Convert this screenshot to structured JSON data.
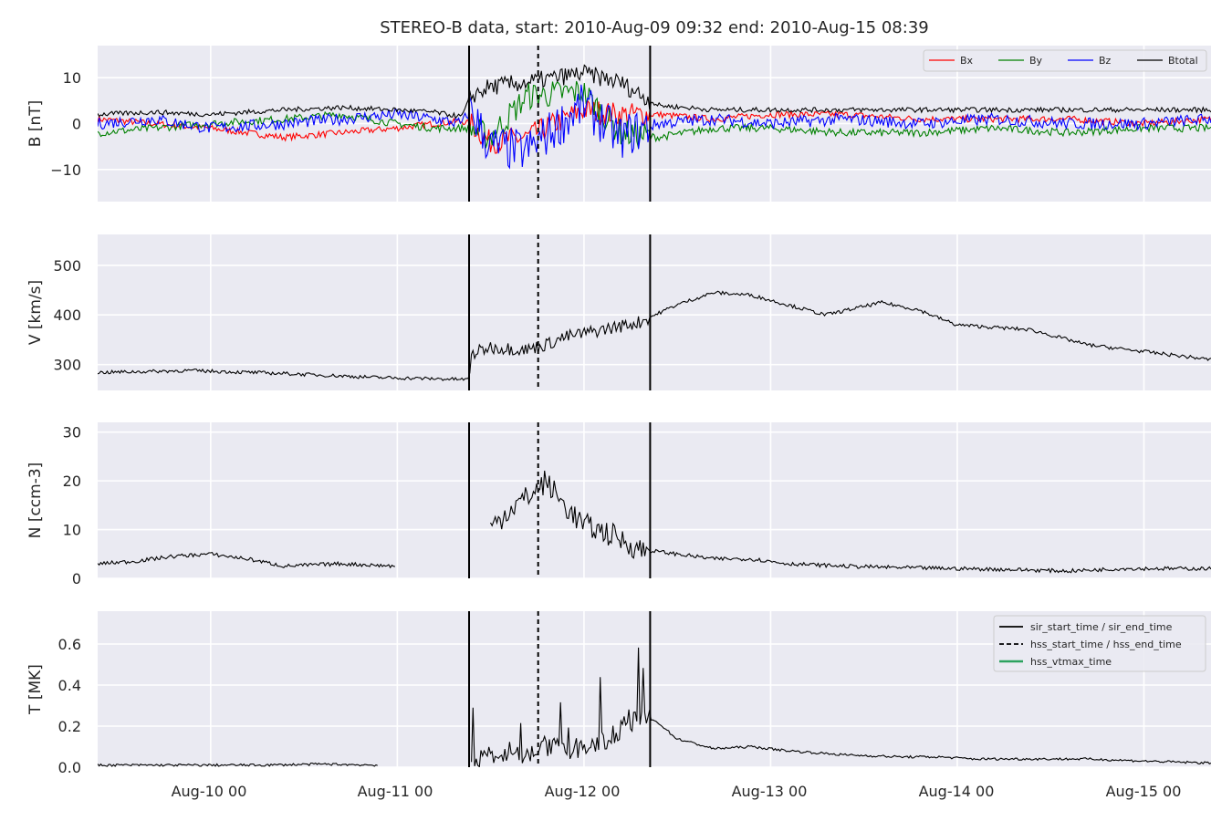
{
  "figure": {
    "title": "STEREO-B data, start: 2010-Aug-09 09:32  end: 2010-Aug-15 08:39",
    "background": "#eaeaf2",
    "grid_color": "#ffffff",
    "x_tick_labels": [
      "Aug-10 00",
      "Aug-11 00",
      "Aug-12 00",
      "Aug-13 00",
      "Aug-14 00",
      "Aug-15 00"
    ]
  },
  "chart_data": [
    {
      "type": "line",
      "panel": "B",
      "ylabel": "B [nT]",
      "xlim_days": [
        0,
        5.965
      ],
      "ylim": [
        -17,
        17
      ],
      "yticks": [
        -10,
        0,
        10
      ],
      "ytick_labels": [
        "−10",
        "0",
        "10"
      ],
      "grid": true,
      "legend": "top-right",
      "series": [
        {
          "name": "Bx",
          "color": "#ff0000",
          "x_day": [
            0,
            0.3,
            0.6,
            1.0,
            1.3,
            1.6,
            1.8,
            1.95,
            2.0,
            2.1,
            2.3,
            2.6,
            2.8,
            3.0,
            3.3,
            3.6,
            4.0,
            4.4,
            4.8,
            5.2,
            5.6,
            5.965
          ],
          "values": [
            1,
            0,
            -1,
            -3,
            -2,
            -1,
            0,
            0.5,
            0,
            -4,
            -3,
            3,
            2,
            2,
            1,
            2,
            2,
            1,
            1,
            1,
            0,
            1
          ]
        },
        {
          "name": "By",
          "color": "#008000",
          "x_day": [
            0,
            0.3,
            0.6,
            1.0,
            1.3,
            1.6,
            1.8,
            1.95,
            2.0,
            2.1,
            2.3,
            2.6,
            2.8,
            3.0,
            3.3,
            3.6,
            4.0,
            4.4,
            4.8,
            5.2,
            5.6,
            5.965
          ],
          "values": [
            -2,
            -1,
            0,
            1,
            2,
            0,
            -1,
            -1,
            -1,
            -3,
            6,
            7,
            -2,
            -3,
            -1,
            -1,
            -2,
            -2,
            -1,
            -2,
            -1,
            -1
          ]
        },
        {
          "name": "Bz",
          "color": "#0000ff",
          "x_day": [
            0,
            0.3,
            0.6,
            1.0,
            1.3,
            1.6,
            1.8,
            1.95,
            2.0,
            2.1,
            2.3,
            2.6,
            2.8,
            3.0,
            3.3,
            3.6,
            4.0,
            4.4,
            4.8,
            5.2,
            5.6,
            5.965
          ],
          "values": [
            0,
            1,
            -1,
            0,
            1,
            2,
            1,
            0,
            3,
            -5,
            -6,
            4,
            -3,
            0,
            1,
            0,
            1,
            0,
            1,
            0,
            0,
            1
          ]
        },
        {
          "name": "Btotal",
          "color": "#000000",
          "x_day": [
            0,
            0.3,
            0.6,
            1.0,
            1.3,
            1.6,
            1.8,
            1.95,
            2.0,
            2.1,
            2.3,
            2.6,
            2.8,
            3.0,
            3.3,
            3.6,
            4.0,
            4.4,
            4.8,
            5.2,
            5.6,
            5.965
          ],
          "values": [
            2,
            2.5,
            2,
            3,
            3.5,
            3,
            2.5,
            1.5,
            6,
            8,
            9,
            11,
            9,
            4,
            3,
            3,
            3,
            3,
            3,
            3,
            3,
            3
          ]
        }
      ]
    },
    {
      "type": "line",
      "panel": "V",
      "ylabel": "V [km/s]",
      "xlim_days": [
        0,
        5.965
      ],
      "ylim": [
        248,
        562
      ],
      "yticks": [
        300,
        400,
        500
      ],
      "ytick_labels": [
        "300",
        "400",
        "500"
      ],
      "grid": true,
      "series": [
        {
          "color": "#000000",
          "x_day": [
            0,
            0.5,
            1.0,
            1.5,
            1.99,
            2.0,
            2.1,
            2.3,
            2.4,
            2.5,
            2.7,
            2.9,
            3.1,
            3.3,
            3.5,
            3.7,
            3.9,
            4.2,
            4.4,
            4.6,
            5.0,
            5.3,
            5.965
          ],
          "values": [
            284,
            288,
            282,
            274,
            270,
            320,
            335,
            330,
            340,
            355,
            370,
            385,
            420,
            445,
            440,
            420,
            400,
            425,
            410,
            380,
            370,
            340,
            310
          ]
        }
      ]
    },
    {
      "type": "line",
      "panel": "N",
      "ylabel": "N [ccm-3]",
      "xlim_days": [
        0,
        5.965
      ],
      "ylim": [
        0,
        32
      ],
      "yticks": [
        0,
        10,
        20,
        30
      ],
      "ytick_labels": [
        "0",
        "10",
        "20",
        "30"
      ],
      "grid": true,
      "series": [
        {
          "color": "#000000",
          "x_day": [
            0,
            0.2,
            0.4,
            0.6,
            0.8,
            1.0,
            1.3,
            1.6,
            1.65,
            2.0,
            2.1,
            2.2,
            2.35,
            2.4,
            2.5,
            2.6,
            2.75,
            2.9,
            3.1,
            3.3,
            3.5,
            3.7,
            4.0,
            4.3,
            4.6,
            4.9,
            5.2,
            5.5,
            5.965
          ],
          "values": [
            3,
            3.5,
            4.5,
            5,
            4,
            2.5,
            3,
            2.5,
            null,
            null,
            10,
            14,
            18,
            20,
            15,
            11,
            9,
            6,
            5,
            4,
            4,
            3,
            2.5,
            2.2,
            2,
            1.8,
            1.5,
            2,
            2
          ]
        }
      ]
    },
    {
      "type": "line",
      "panel": "T",
      "ylabel": "T [MK]",
      "xlim_days": [
        0,
        5.965
      ],
      "ylim": [
        0,
        0.76
      ],
      "yticks": [
        0.0,
        0.2,
        0.4,
        0.6
      ],
      "ytick_labels": [
        "0.0",
        "0.2",
        "0.4",
        "0.6"
      ],
      "grid": true,
      "legend": "top-right",
      "series": [
        {
          "color": "#000000",
          "x_day": [
            0,
            0.3,
            0.6,
            0.9,
            1.2,
            1.5,
            1.65,
            2.0,
            2.1,
            2.2,
            2.3,
            2.35,
            2.4,
            2.5,
            2.7,
            2.9,
            3.0,
            3.1,
            3.3,
            3.5,
            3.7,
            4.0,
            4.3,
            4.5,
            4.7,
            5.0,
            5.3,
            5.6,
            5.965
          ],
          "values": [
            0.01,
            0.01,
            0.01,
            0.01,
            0.015,
            0.01,
            null,
            0.02,
            0.06,
            0.08,
            0.06,
            0.1,
            0.1,
            0.08,
            0.12,
            0.25,
            0.22,
            0.14,
            0.09,
            0.1,
            0.08,
            0.06,
            0.05,
            0.05,
            0.04,
            0.04,
            0.04,
            0.03,
            0.02
          ]
        }
      ]
    }
  ],
  "markers": {
    "sir_start_day": 1.99,
    "hss_start_day": 2.36,
    "sir_end_day": 2.96
  },
  "legend_B": [
    {
      "label": "Bx",
      "color": "#ff0000"
    },
    {
      "label": "By",
      "color": "#008000"
    },
    {
      "label": "Bz",
      "color": "#0000ff"
    },
    {
      "label": "Btotal",
      "color": "#000000"
    }
  ],
  "legend_T": [
    {
      "label": "sir_start_time / sir_end_time",
      "color": "#000000",
      "style": "solid"
    },
    {
      "label": "hss_start_time / hss_end_time",
      "color": "#000000",
      "style": "dashed"
    },
    {
      "label": "hss_vtmax_time",
      "color": "#2ca25f",
      "style": "solid"
    }
  ]
}
